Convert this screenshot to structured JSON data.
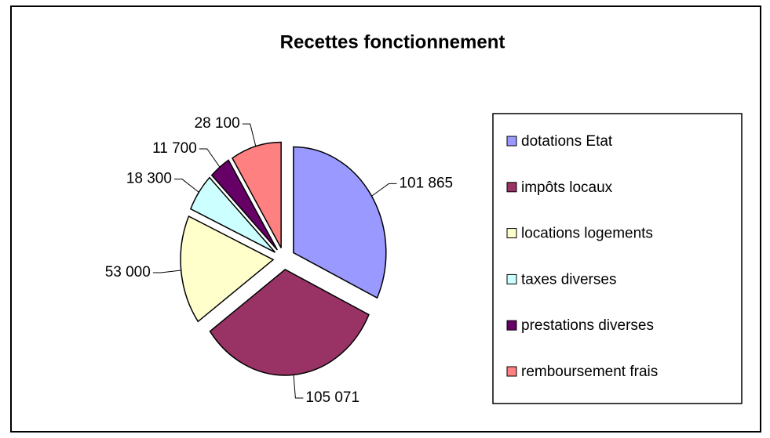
{
  "chart_data": {
    "type": "pie",
    "title": "Recettes fonctionnement",
    "categories": [
      "dotations Etat",
      "impôts locaux",
      "locations logements",
      "taxes diverses",
      "prestations diverses",
      "remboursement frais"
    ],
    "values": [
      101865,
      105071,
      53000,
      18300,
      11700,
      28100
    ],
    "value_labels": [
      "101 865",
      "105 071",
      "53 000",
      "18 300",
      "11 700",
      "28 100"
    ],
    "colors": [
      "#9999ff",
      "#993366",
      "#ffffcc",
      "#ccffff",
      "#660066",
      "#ff8080"
    ],
    "legend": "right"
  }
}
